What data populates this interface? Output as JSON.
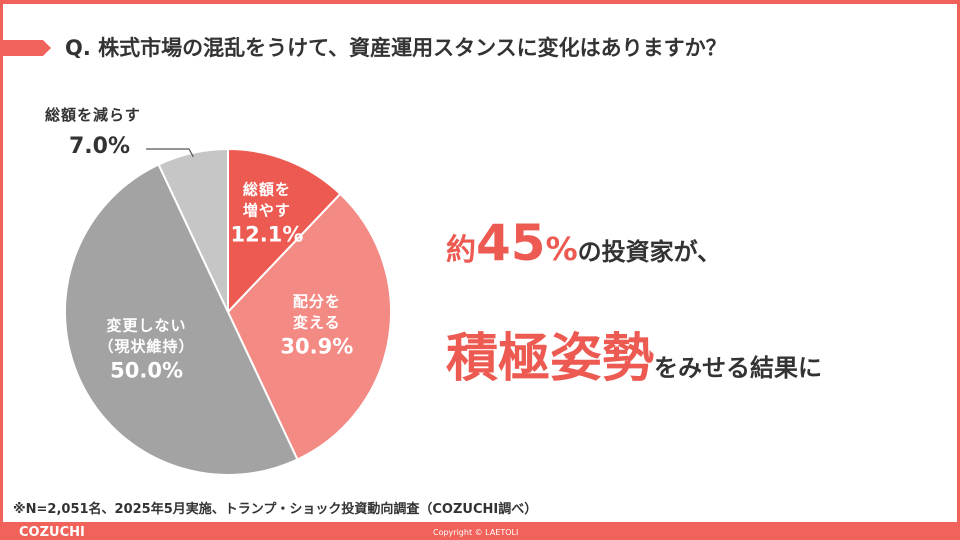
{
  "header": {
    "title": "Q. 株式市場の混乱をうけて、資産運用スタンスに変化はありますか？"
  },
  "chart_data": {
    "type": "pie",
    "categories": [
      "総額を増やす",
      "配分を変える",
      "変更しない（現状維持）",
      "総額を減らす"
    ],
    "values": [
      12.1,
      30.9,
      50.0,
      7.0
    ],
    "value_labels": [
      "12.1%",
      "30.9%",
      "50.0%",
      "7.0%"
    ],
    "colors": [
      "#ec5a52",
      "#f48a84",
      "#a3a3a3",
      "#c6c6c6"
    ]
  },
  "callout": {
    "line1": [
      "約",
      "45",
      "%",
      "の投資家が、"
    ],
    "line2": [
      "積極姿勢",
      "をみせる結果に"
    ]
  },
  "footnote": "※N=2,051名、2025年5月実施、トランプ・ショック投資動向調査（COZUCHI調べ）",
  "footer": {
    "brand": "COZUCHI",
    "copyright": "Copyright © LAETOLI"
  }
}
